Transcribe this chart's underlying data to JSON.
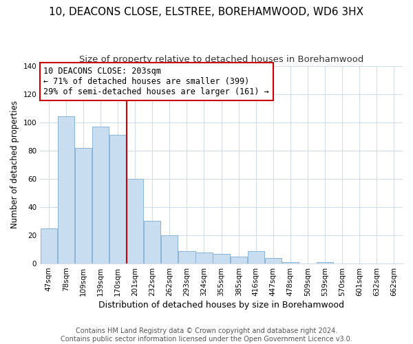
{
  "title": "10, DEACONS CLOSE, ELSTREE, BOREHAMWOOD, WD6 3HX",
  "subtitle": "Size of property relative to detached houses in Borehamwood",
  "xlabel": "Distribution of detached houses by size in Borehamwood",
  "ylabel": "Number of detached properties",
  "bar_labels": [
    "47sqm",
    "78sqm",
    "109sqm",
    "139sqm",
    "170sqm",
    "201sqm",
    "232sqm",
    "262sqm",
    "293sqm",
    "324sqm",
    "355sqm",
    "385sqm",
    "416sqm",
    "447sqm",
    "478sqm",
    "509sqm",
    "539sqm",
    "570sqm",
    "601sqm",
    "632sqm",
    "662sqm"
  ],
  "bar_values": [
    25,
    104,
    82,
    97,
    91,
    60,
    30,
    20,
    9,
    8,
    7,
    5,
    9,
    4,
    1,
    0,
    1,
    0,
    0,
    0,
    0
  ],
  "bar_color": "#c9ddf0",
  "bar_edge_color": "#8ab4d8",
  "vline_index": 5,
  "vline_color": "#cc0000",
  "annotation_box_text": "10 DEACONS CLOSE: 203sqm\n← 71% of detached houses are smaller (399)\n29% of semi-detached houses are larger (161) →",
  "ylim": [
    0,
    140
  ],
  "yticks": [
    0,
    20,
    40,
    60,
    80,
    100,
    120,
    140
  ],
  "footer_text": "Contains HM Land Registry data © Crown copyright and database right 2024.\nContains public sector information licensed under the Open Government Licence v3.0.",
  "title_fontsize": 11,
  "subtitle_fontsize": 9.5,
  "xlabel_fontsize": 9,
  "ylabel_fontsize": 8.5,
  "tick_fontsize": 7.5,
  "annotation_fontsize": 8.5,
  "footer_fontsize": 7,
  "background_color": "#ffffff",
  "grid_color": "#d0dce8"
}
